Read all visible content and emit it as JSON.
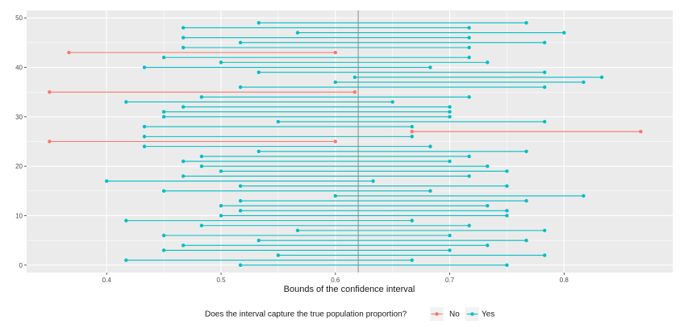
{
  "chart_data": {
    "type": "dumbbell",
    "xlabel": "Bounds of the confidence interval",
    "ylabel": "",
    "xlim": [
      0.33,
      0.895
    ],
    "ylim": [
      -1.5,
      51.5
    ],
    "x_ticks": [
      0.4,
      0.5,
      0.6,
      0.7,
      0.8
    ],
    "x_tick_labels": [
      "0.4",
      "0.5",
      "0.6",
      "0.7",
      "0.8"
    ],
    "y_ticks": [
      0,
      10,
      20,
      30,
      40,
      50
    ],
    "y_tick_labels": [
      "0",
      "10",
      "20",
      "30",
      "40",
      "50"
    ],
    "grid": true,
    "true_proportion": 0.62,
    "legend": {
      "title": "Does the interval capture the true population proportion?",
      "position": "bottom",
      "entries": [
        {
          "label": "No",
          "color": "#F8766D"
        },
        {
          "label": "Yes",
          "color": "#00BFC4"
        }
      ]
    },
    "colors": {
      "No": "#F8766D",
      "Yes": "#00BFC4"
    },
    "intervals": [
      {
        "sample": 1,
        "lower": 0.517,
        "upper": 0.75,
        "captures": "Yes"
      },
      {
        "sample": 2,
        "lower": 0.417,
        "upper": 0.667,
        "captures": "Yes"
      },
      {
        "sample": 3,
        "lower": 0.55,
        "upper": 0.783,
        "captures": "Yes"
      },
      {
        "sample": 4,
        "lower": 0.45,
        "upper": 0.7,
        "captures": "Yes"
      },
      {
        "sample": 5,
        "lower": 0.467,
        "upper": 0.733,
        "captures": "Yes"
      },
      {
        "sample": 6,
        "lower": 0.533,
        "upper": 0.767,
        "captures": "Yes"
      },
      {
        "sample": 7,
        "lower": 0.45,
        "upper": 0.7,
        "captures": "Yes"
      },
      {
        "sample": 8,
        "lower": 0.567,
        "upper": 0.783,
        "captures": "Yes"
      },
      {
        "sample": 9,
        "lower": 0.483,
        "upper": 0.717,
        "captures": "Yes"
      },
      {
        "sample": 10,
        "lower": 0.417,
        "upper": 0.667,
        "captures": "Yes"
      },
      {
        "sample": 11,
        "lower": 0.5,
        "upper": 0.75,
        "captures": "Yes"
      },
      {
        "sample": 12,
        "lower": 0.517,
        "upper": 0.75,
        "captures": "Yes"
      },
      {
        "sample": 13,
        "lower": 0.5,
        "upper": 0.733,
        "captures": "Yes"
      },
      {
        "sample": 14,
        "lower": 0.517,
        "upper": 0.767,
        "captures": "Yes"
      },
      {
        "sample": 15,
        "lower": 0.6,
        "upper": 0.817,
        "captures": "Yes"
      },
      {
        "sample": 16,
        "lower": 0.45,
        "upper": 0.683,
        "captures": "Yes"
      },
      {
        "sample": 17,
        "lower": 0.517,
        "upper": 0.75,
        "captures": "Yes"
      },
      {
        "sample": 18,
        "lower": 0.4,
        "upper": 0.633,
        "captures": "Yes"
      },
      {
        "sample": 19,
        "lower": 0.467,
        "upper": 0.717,
        "captures": "Yes"
      },
      {
        "sample": 20,
        "lower": 0.5,
        "upper": 0.75,
        "captures": "Yes"
      },
      {
        "sample": 21,
        "lower": 0.483,
        "upper": 0.733,
        "captures": "Yes"
      },
      {
        "sample": 22,
        "lower": 0.467,
        "upper": 0.7,
        "captures": "Yes"
      },
      {
        "sample": 23,
        "lower": 0.483,
        "upper": 0.717,
        "captures": "Yes"
      },
      {
        "sample": 24,
        "lower": 0.533,
        "upper": 0.767,
        "captures": "Yes"
      },
      {
        "sample": 25,
        "lower": 0.433,
        "upper": 0.683,
        "captures": "Yes"
      },
      {
        "sample": 26,
        "lower": 0.35,
        "upper": 0.6,
        "captures": "No"
      },
      {
        "sample": 27,
        "lower": 0.433,
        "upper": 0.667,
        "captures": "Yes"
      },
      {
        "sample": 28,
        "lower": 0.667,
        "upper": 0.867,
        "captures": "No"
      },
      {
        "sample": 29,
        "lower": 0.433,
        "upper": 0.667,
        "captures": "Yes"
      },
      {
        "sample": 30,
        "lower": 0.55,
        "upper": 0.783,
        "captures": "Yes"
      },
      {
        "sample": 31,
        "lower": 0.45,
        "upper": 0.7,
        "captures": "Yes"
      },
      {
        "sample": 32,
        "lower": 0.45,
        "upper": 0.7,
        "captures": "Yes"
      },
      {
        "sample": 33,
        "lower": 0.467,
        "upper": 0.7,
        "captures": "Yes"
      },
      {
        "sample": 34,
        "lower": 0.417,
        "upper": 0.65,
        "captures": "Yes"
      },
      {
        "sample": 35,
        "lower": 0.483,
        "upper": 0.717,
        "captures": "Yes"
      },
      {
        "sample": 36,
        "lower": 0.35,
        "upper": 0.617,
        "captures": "No"
      },
      {
        "sample": 37,
        "lower": 0.517,
        "upper": 0.783,
        "captures": "Yes"
      },
      {
        "sample": 38,
        "lower": 0.6,
        "upper": 0.817,
        "captures": "Yes"
      },
      {
        "sample": 39,
        "lower": 0.617,
        "upper": 0.833,
        "captures": "Yes"
      },
      {
        "sample": 40,
        "lower": 0.533,
        "upper": 0.783,
        "captures": "Yes"
      },
      {
        "sample": 41,
        "lower": 0.433,
        "upper": 0.683,
        "captures": "Yes"
      },
      {
        "sample": 42,
        "lower": 0.5,
        "upper": 0.733,
        "captures": "Yes"
      },
      {
        "sample": 43,
        "lower": 0.45,
        "upper": 0.717,
        "captures": "Yes"
      },
      {
        "sample": 44,
        "lower": 0.367,
        "upper": 0.6,
        "captures": "No"
      },
      {
        "sample": 45,
        "lower": 0.467,
        "upper": 0.717,
        "captures": "Yes"
      },
      {
        "sample": 46,
        "lower": 0.517,
        "upper": 0.783,
        "captures": "Yes"
      },
      {
        "sample": 47,
        "lower": 0.467,
        "upper": 0.717,
        "captures": "Yes"
      },
      {
        "sample": 48,
        "lower": 0.567,
        "upper": 0.8,
        "captures": "Yes"
      },
      {
        "sample": 49,
        "lower": 0.467,
        "upper": 0.717,
        "captures": "Yes"
      },
      {
        "sample": 50,
        "lower": 0.533,
        "upper": 0.767,
        "captures": "Yes"
      }
    ]
  }
}
